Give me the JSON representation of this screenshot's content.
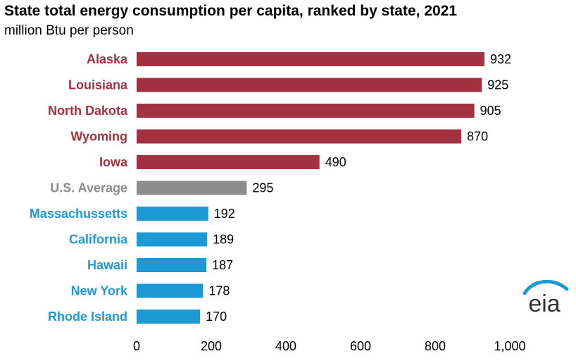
{
  "title": "State total energy consumption per capita, ranked by state, 2021",
  "subtitle": "million Btu per person",
  "logo_text": "eia",
  "colors": {
    "high": "#a3313f",
    "average": "#8c8c8c",
    "low": "#1d9ad6"
  },
  "chart_data": {
    "type": "bar",
    "orientation": "horizontal",
    "title": "State total energy consumption per capita, ranked by state, 2021",
    "ylabel": "",
    "xlabel": "",
    "xlim": [
      0,
      1000
    ],
    "xticks": [
      0,
      200,
      400,
      600,
      800,
      1000
    ],
    "xtick_labels": [
      "0",
      "200",
      "400",
      "600",
      "800",
      "1,000"
    ],
    "grid": false,
    "categories": [
      "Alaska",
      "Louisiana",
      "North Dakota",
      "Wyoming",
      "Iowa",
      "U.S. Average",
      "Massachussetts",
      "California",
      "Hawaii",
      "New York",
      "Rhode Island"
    ],
    "values": [
      932,
      925,
      905,
      870,
      490,
      295,
      192,
      189,
      187,
      178,
      170
    ],
    "groups": [
      "high",
      "high",
      "high",
      "high",
      "high",
      "average",
      "low",
      "low",
      "low",
      "low",
      "low"
    ]
  }
}
